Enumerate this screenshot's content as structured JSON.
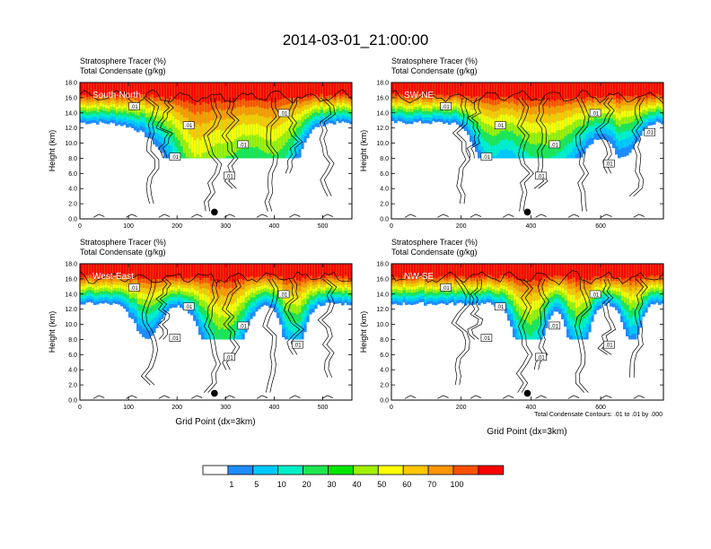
{
  "title": "2014-03-01_21:00:00",
  "panel_label_1": "Stratosphere Tracer   (%)",
  "panel_label_2": "Total Condensate   (g/kg)",
  "xlabel": "Grid Point (dx=3km)",
  "ylabel": "Height (km)",
  "contour_note": "Total Condensate Contours: .01 to .01 by .000",
  "colorbar": {
    "levels": [
      "1",
      "5",
      "10",
      "20",
      "30",
      "40",
      "50",
      "60",
      "70",
      "100"
    ],
    "colors": [
      "#ffffff",
      "#1e8cff",
      "#00c8ff",
      "#00f0c8",
      "#1ee650",
      "#00e600",
      "#a0f000",
      "#ffff00",
      "#ffc800",
      "#ff9600",
      "#ff5000",
      "#ff0000"
    ]
  },
  "chart_data": [
    {
      "type": "heatmap",
      "cross_section": "South-North",
      "ylabel": "Height (km)",
      "ylim": [
        0,
        18
      ],
      "yticks": [
        "0.0",
        "2.0",
        "4.0",
        "6.0",
        "8.0",
        "10.0",
        "12.0",
        "14.0",
        "16.0",
        "18.0"
      ],
      "xlim": [
        0,
        560
      ],
      "xticks": [
        0,
        100,
        200,
        300,
        400,
        500
      ],
      "marker_x": 277,
      "contour_labels": [
        ".01",
        ".01",
        ".01",
        ".01",
        ".01",
        ".01"
      ]
    },
    {
      "type": "heatmap",
      "cross_section": "SW-NE",
      "ylabel": "Height (km)",
      "ylim": [
        0,
        18
      ],
      "yticks": [
        "0.0",
        "2.0",
        "4.0",
        "6.0",
        "8.0",
        "10.0",
        "12.0",
        "14.0",
        "16.0",
        "18.0"
      ],
      "xlim": [
        0,
        780
      ],
      "xticks": [
        0,
        200,
        400,
        600
      ],
      "marker_x": 390,
      "contour_labels": [
        ".01",
        ".01",
        ".01",
        ".01",
        ".01",
        ".01",
        ".01",
        ".01"
      ]
    },
    {
      "type": "heatmap",
      "cross_section": "West-East",
      "ylabel": "Height (km)",
      "xlabel": "Grid Point (dx=3km)",
      "ylim": [
        0,
        18
      ],
      "yticks": [
        "0.0",
        "2.0",
        "4.0",
        "6.0",
        "8.0",
        "10.0",
        "12.0",
        "14.0",
        "16.0",
        "18.0"
      ],
      "xlim": [
        0,
        560
      ],
      "xticks": [
        0,
        100,
        200,
        300,
        400,
        500
      ],
      "marker_x": 277,
      "contour_labels": [
        ".01",
        ".01",
        ".01",
        ".01",
        ".01",
        ".01",
        ".01"
      ]
    },
    {
      "type": "heatmap",
      "cross_section": "NW-SE",
      "ylabel": "Height (km)",
      "xlabel": "Grid Point (dx=3km)",
      "ylim": [
        0,
        18
      ],
      "yticks": [
        "0.0",
        "2.0",
        "4.0",
        "6.0",
        "8.0",
        "10.0",
        "12.0",
        "14.0",
        "16.0",
        "18.0"
      ],
      "xlim": [
        0,
        780
      ],
      "xticks": [
        0,
        200,
        400,
        600
      ],
      "marker_x": 390,
      "contour_labels": [
        ".01",
        ".01",
        ".01",
        ".01",
        ".01",
        ".01",
        ".01"
      ]
    }
  ]
}
